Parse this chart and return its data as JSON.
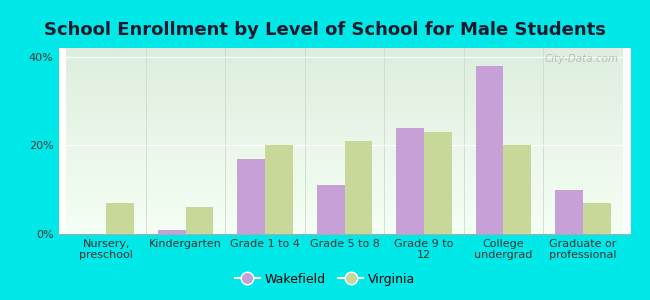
{
  "title": "School Enrollment by Level of School for Male Students",
  "categories": [
    "Nursery,\npreschool",
    "Kindergarten",
    "Grade 1 to 4",
    "Grade 5 to 8",
    "Grade 9 to\n12",
    "College\nundergrad",
    "Graduate or\nprofessional"
  ],
  "wakefield": [
    0.0,
    1.0,
    17.0,
    11.0,
    24.0,
    38.0,
    10.0
  ],
  "virginia": [
    7.0,
    6.0,
    20.0,
    21.0,
    23.0,
    20.0,
    7.0
  ],
  "wakefield_color": "#c8a0d8",
  "virginia_color": "#c8d898",
  "background_outer": "#00e8e8",
  "background_inner_top": "#deeede",
  "background_inner_bottom": "#f5fff5",
  "ylabel_ticks": [
    "0%",
    "20%",
    "40%"
  ],
  "ytick_vals": [
    0,
    20,
    40
  ],
  "ylim": [
    0,
    42
  ],
  "bar_width": 0.35,
  "legend_wakefield": "Wakefield",
  "legend_virginia": "Virginia",
  "watermark": "City-Data.com",
  "title_fontsize": 13,
  "tick_fontsize": 8,
  "legend_fontsize": 9
}
